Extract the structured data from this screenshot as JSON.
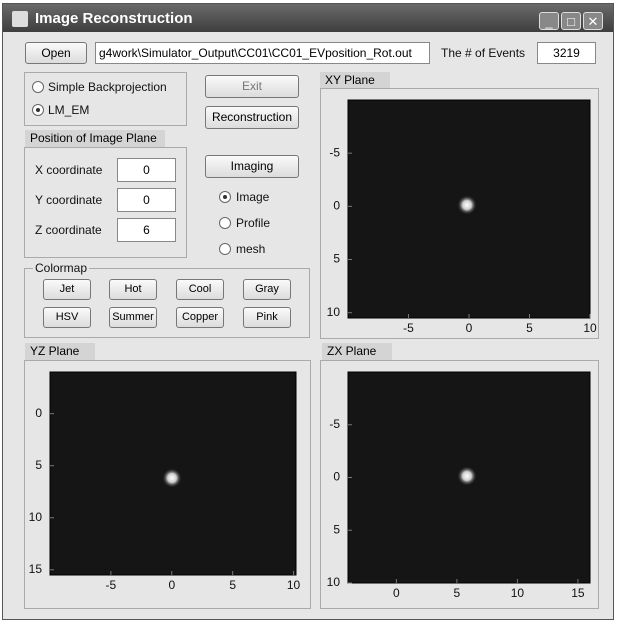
{
  "window": {
    "title": "Image Reconstruction"
  },
  "controls": {
    "open": "Open",
    "file_path": "g4work\\Simulator_Output\\CC01\\CC01_EVposition_Rot.out",
    "events_label": "The # of Events",
    "events_value": 3219,
    "exit": "Exit",
    "reconstruction": "Reconstruction",
    "imaging": "Imaging"
  },
  "method": {
    "options": [
      "Simple Backprojection",
      "LM_EM"
    ],
    "selected": 1
  },
  "position": {
    "title": "Position of Image Plane",
    "fields": [
      {
        "label": "X coordinate",
        "value": 0
      },
      {
        "label": "Y coordinate",
        "value": 0
      },
      {
        "label": "Z coordinate",
        "value": 6
      }
    ]
  },
  "display": {
    "options": [
      "Image",
      "Profile",
      "mesh"
    ],
    "selected": 0
  },
  "colormap": {
    "title": "Colormap",
    "buttons": [
      "Jet",
      "Hot",
      "Cool",
      "Gray",
      "HSV",
      "Summer",
      "Copper",
      "Pink"
    ]
  },
  "plots": [
    {
      "title": "XY Plane",
      "xlim": [
        -10,
        10
      ],
      "ylim": [
        -10,
        10.5
      ],
      "xticks": [
        -5,
        0,
        5,
        10
      ],
      "yticks": [
        -5,
        0,
        5,
        10
      ]
    },
    {
      "title": "YZ Plane",
      "xlim": [
        -10,
        10.2
      ],
      "ylim": [
        -4,
        15.5
      ],
      "xticks": [
        -5,
        0,
        5,
        10
      ],
      "yticks": [
        0,
        5,
        10,
        15
      ]
    },
    {
      "title": "ZX Plane",
      "xlim": [
        -4,
        16
      ],
      "ylim": [
        -10,
        10
      ],
      "xticks": [
        0,
        5,
        10,
        15
      ],
      "yticks": [
        -5,
        0,
        5,
        10
      ]
    }
  ]
}
